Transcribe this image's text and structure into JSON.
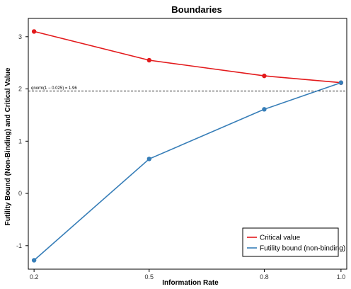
{
  "chart_data": {
    "type": "line",
    "title": "Boundaries",
    "xlabel": "Information Rate",
    "ylabel": "Futility Bound (Non-Binding) and Critical Value",
    "x": [
      0.2,
      0.5,
      0.8,
      1.0
    ],
    "x_tick_labels": [
      "0.2",
      "0.5",
      "0.8",
      "1.0"
    ],
    "y_ticks": [
      -1,
      0,
      1,
      2,
      3
    ],
    "y_tick_labels": [
      "-1",
      "0",
      "1",
      "2",
      "3"
    ],
    "xlim": [
      0.185,
      1.015
    ],
    "ylim": [
      -1.45,
      3.35
    ],
    "grid": false,
    "legend_position": "bottom-right",
    "series": [
      {
        "name": "Critical value",
        "color": "#e31a1c",
        "values": [
          3.1,
          2.55,
          2.25,
          2.12
        ]
      },
      {
        "name": "Futility bound (non-binding)",
        "color": "#377eb8",
        "values": [
          -1.28,
          0.66,
          1.61,
          2.12
        ]
      }
    ],
    "reference_line": {
      "y": 1.96,
      "label": "qnorm(1 − 0.025) = 1.96",
      "style": "dashed"
    }
  }
}
